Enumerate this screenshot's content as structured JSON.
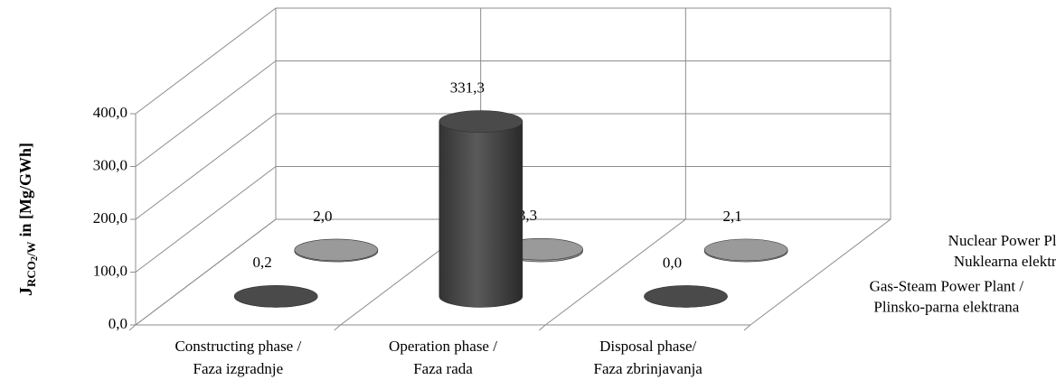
{
  "chart_data": {
    "type": "bar3d",
    "categories": [
      "Constructing phase / Faza izgradnje",
      "Operation phase / Faza rada",
      "Disposal phase/ Faza zbrinjavanja"
    ],
    "series": [
      {
        "name": "Gas-Steam Power Plant / Plinsko-parna elektrana",
        "color": "#4a4a4a",
        "values": [
          0.2,
          331.3,
          0.0
        ],
        "value_labels": [
          "0,2",
          "331,3",
          "0,0"
        ]
      },
      {
        "name": "Nuclear Power Plant / Nuklearna elektrana",
        "color": "#9a9a9a",
        "values": [
          2.0,
          3.3,
          2.1
        ],
        "value_labels": [
          "2,0",
          "3,3",
          "2,1"
        ]
      }
    ],
    "y_label": {
      "symbol": "J",
      "subscript": "RCO",
      "subscript_index": "2",
      "subscript_tail": "/W",
      "unit": "in [Mg/GWh]"
    },
    "ylim": [
      0,
      400
    ],
    "yticks": [
      {
        "value": 0,
        "label": "0,0"
      },
      {
        "value": 100,
        "label": "100,0"
      },
      {
        "value": 200,
        "label": "200,0"
      },
      {
        "value": 300,
        "label": "300,0"
      },
      {
        "value": 400,
        "label": "400,0"
      }
    ],
    "grid": true
  }
}
